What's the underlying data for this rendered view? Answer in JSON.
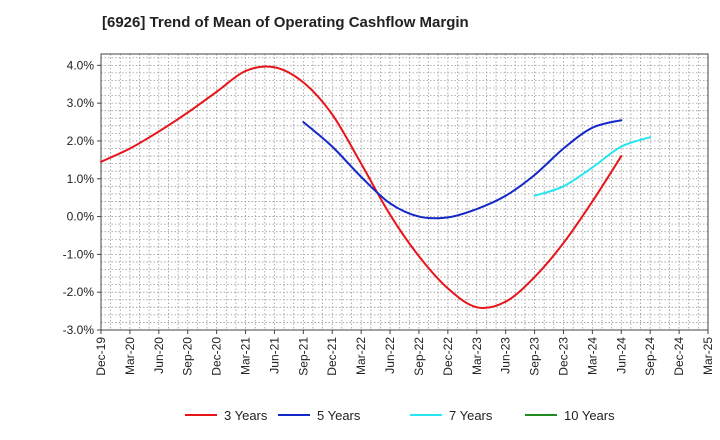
{
  "chart_data": {
    "type": "line",
    "title": "[6926]  Trend of Mean of Operating Cashflow Margin",
    "xlabel": "",
    "ylabel": "",
    "x": [
      "Dec-19",
      "Mar-20",
      "Jun-20",
      "Sep-20",
      "Dec-20",
      "Mar-21",
      "Jun-21",
      "Sep-21",
      "Dec-21",
      "Mar-22",
      "Jun-22",
      "Sep-22",
      "Dec-22",
      "Mar-23",
      "Jun-23",
      "Sep-23",
      "Dec-23",
      "Mar-24",
      "Jun-24",
      "Sep-24",
      "Dec-24",
      "Mar-25"
    ],
    "ylim": [
      -3.0,
      4.3
    ],
    "yticks": [
      -3.0,
      -2.0,
      -1.0,
      0.0,
      1.0,
      2.0,
      3.0,
      4.0
    ],
    "ytick_labels": [
      "-3.0%",
      "-2.0%",
      "-1.0%",
      "0.0%",
      "1.0%",
      "2.0%",
      "3.0%",
      "4.0%"
    ],
    "grid": true,
    "legend_position": "bottom",
    "series": [
      {
        "name": "3 Years",
        "color": "#e8141b",
        "values": [
          1.45,
          1.8,
          2.25,
          2.75,
          3.3,
          3.85,
          3.95,
          3.55,
          2.7,
          1.4,
          0.05,
          -1.05,
          -1.9,
          -2.4,
          -2.25,
          -1.6,
          -0.7,
          0.4,
          1.6,
          null,
          null,
          null
        ]
      },
      {
        "name": "5 Years",
        "color": "#1428c8",
        "values": [
          null,
          null,
          null,
          null,
          null,
          null,
          null,
          2.5,
          1.85,
          1.05,
          0.35,
          0.0,
          -0.02,
          0.2,
          0.55,
          1.1,
          1.8,
          2.35,
          2.55,
          null,
          null,
          null
        ]
      },
      {
        "name": "7 Years",
        "color": "#28e6f0",
        "values": [
          null,
          null,
          null,
          null,
          null,
          null,
          null,
          null,
          null,
          null,
          null,
          null,
          null,
          null,
          null,
          0.55,
          0.8,
          1.3,
          1.85,
          2.1,
          null,
          null
        ]
      },
      {
        "name": "10 Years",
        "color": "#1e8c1e",
        "values": [
          null,
          null,
          null,
          null,
          null,
          null,
          null,
          null,
          null,
          null,
          null,
          null,
          null,
          null,
          null,
          null,
          null,
          null,
          null,
          null,
          null,
          null
        ]
      }
    ]
  }
}
